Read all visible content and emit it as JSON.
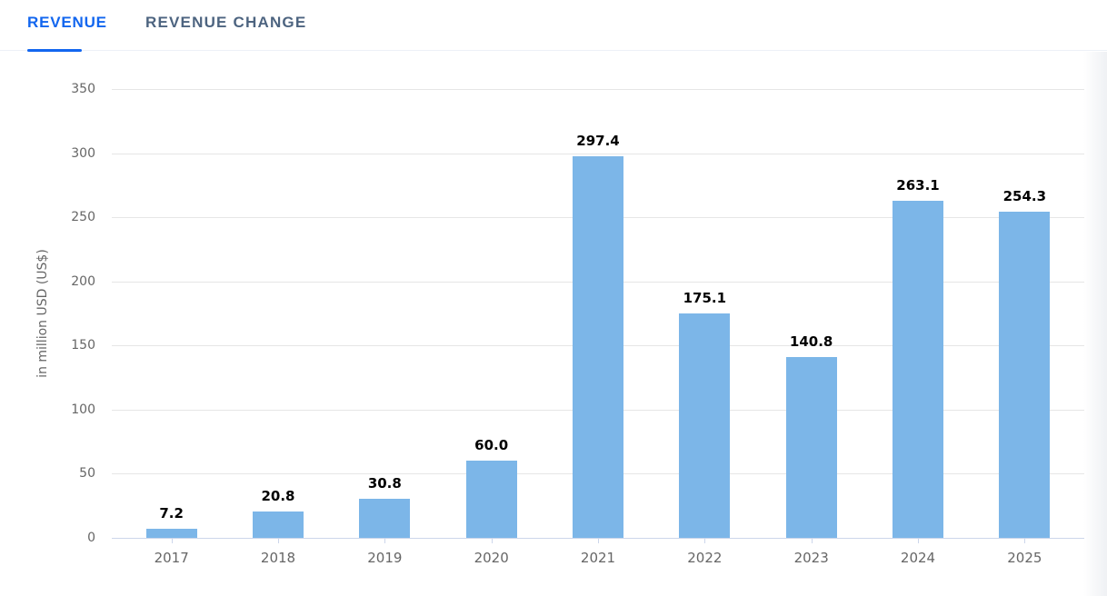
{
  "tabs": [
    {
      "label": "REVENUE",
      "active": true
    },
    {
      "label": "REVENUE CHANGE",
      "active": false
    }
  ],
  "chart_data": {
    "type": "bar",
    "title": "",
    "categories": [
      "2017",
      "2018",
      "2019",
      "2020",
      "2021",
      "2022",
      "2023",
      "2024",
      "2025"
    ],
    "values": [
      7.2,
      20.8,
      30.8,
      60.0,
      297.4,
      175.1,
      140.8,
      263.1,
      254.3
    ],
    "value_labels": [
      "7.2",
      "20.8",
      "30.8",
      "60.0",
      "297.4",
      "175.1",
      "140.8",
      "263.1",
      "254.3"
    ],
    "xlabel": "",
    "ylabel": "in million USD (US$)",
    "ylim": [
      0,
      350
    ],
    "yticks": [
      0,
      50,
      100,
      150,
      200,
      250,
      300,
      350
    ],
    "grid": true,
    "legend": "none",
    "colors": {
      "bar": "#7cb6e8",
      "gridline": "#e6e6e6",
      "axis_line": "#ccd6eb",
      "tick_mark": "#ccd6eb",
      "axis_label": "#666666",
      "data_label": "#000000"
    }
  },
  "theme": {
    "tab_active_color": "#1266ef",
    "tab_inactive_color": "#4d6480",
    "tab_underline_color": "#1266ef",
    "divider_color": "#edf1f7",
    "background": "#ffffff"
  }
}
